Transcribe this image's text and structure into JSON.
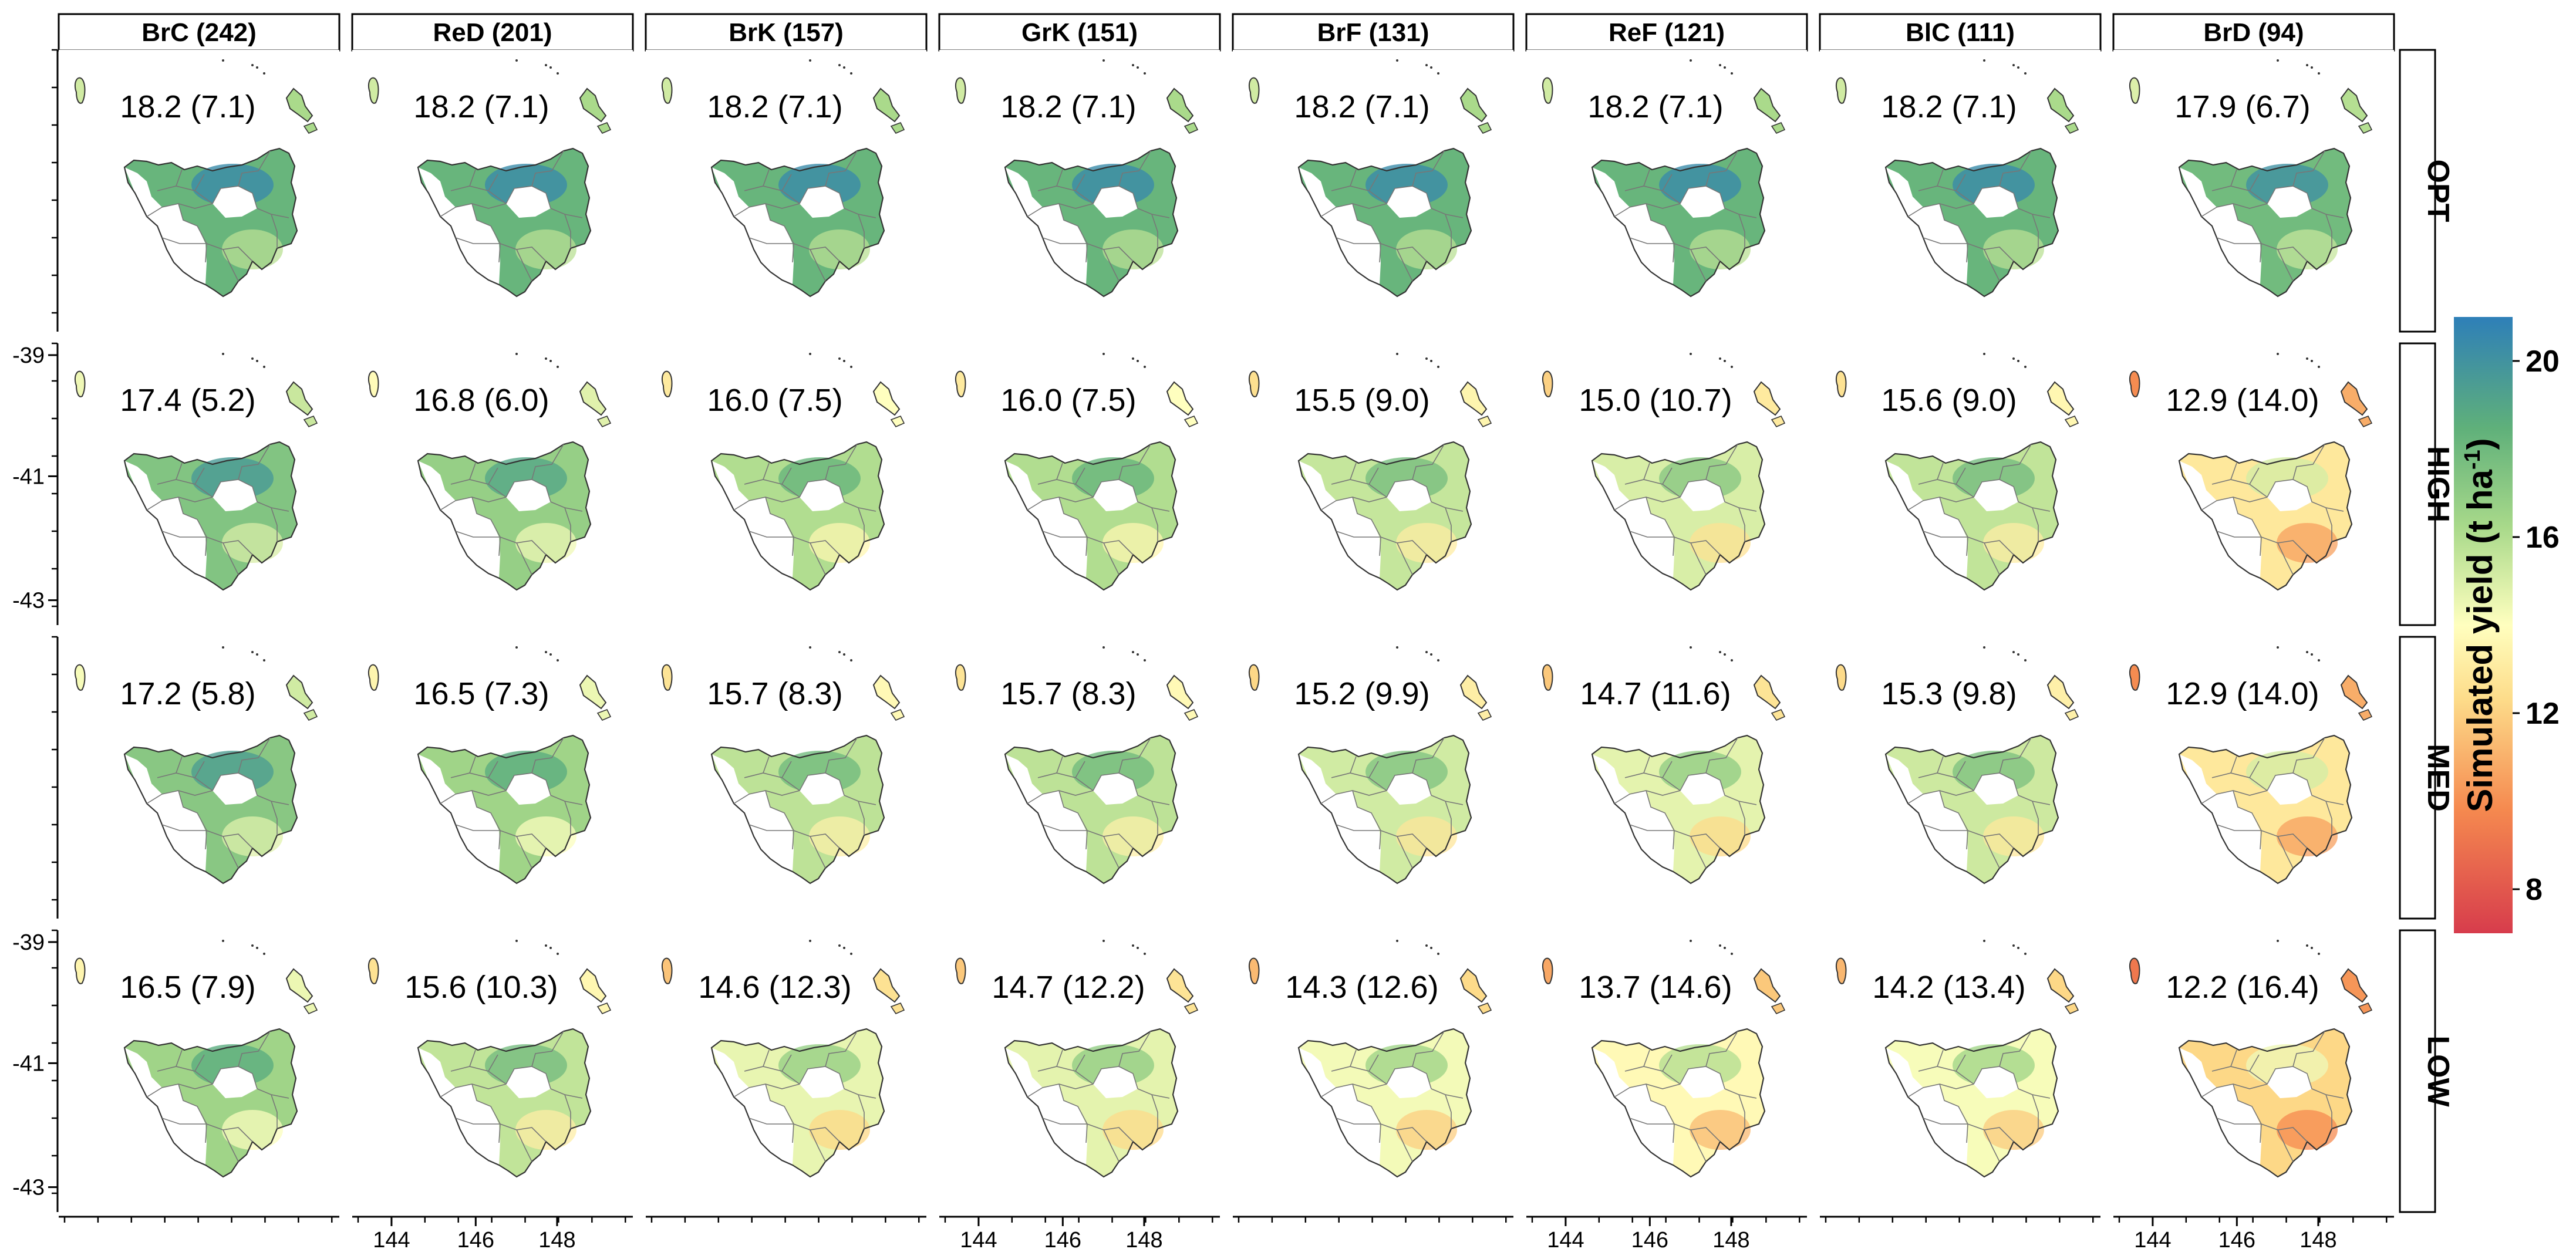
{
  "columns": [
    {
      "label": "BrC (242)"
    },
    {
      "label": "ReD (201)"
    },
    {
      "label": "BrK (157)"
    },
    {
      "label": "GrK (151)"
    },
    {
      "label": "BrF (131)"
    },
    {
      "label": "ReF (121)"
    },
    {
      "label": "BlC (111)"
    },
    {
      "label": "BrD (94)"
    }
  ],
  "rows": [
    {
      "label": "OPT"
    },
    {
      "label": "HIGH"
    },
    {
      "label": "MED"
    },
    {
      "label": "LOW"
    }
  ],
  "cells": [
    [
      "18.2 (7.1)",
      "18.2 (7.1)",
      "18.2 (7.1)",
      "18.2 (7.1)",
      "18.2 (7.1)",
      "18.2 (7.1)",
      "18.2 (7.1)",
      "17.9 (6.7)"
    ],
    [
      "17.4 (5.2)",
      "16.8 (6.0)",
      "16.0 (7.5)",
      "16.0 (7.5)",
      "15.5 (9.0)",
      "15.0 (10.7)",
      "15.6 (9.0)",
      "12.9 (14.0)"
    ],
    [
      "17.2 (5.8)",
      "16.5 (7.3)",
      "15.7 (8.3)",
      "15.7 (8.3)",
      "15.2 (9.9)",
      "14.7 (11.6)",
      "15.3 (9.8)",
      "12.9 (14.0)"
    ],
    [
      "16.5 (7.9)",
      "15.6 (10.3)",
      "14.6 (12.3)",
      "14.7 (12.2)",
      "14.3 (12.6)",
      "13.7 (14.6)",
      "14.2 (13.4)",
      "12.2 (16.4)"
    ]
  ],
  "cell_mean_yield": [
    [
      18.2,
      18.2,
      18.2,
      18.2,
      18.2,
      18.2,
      18.2,
      17.9
    ],
    [
      17.4,
      16.8,
      16.0,
      16.0,
      15.5,
      15.0,
      15.6,
      12.9
    ],
    [
      17.2,
      16.5,
      15.7,
      15.7,
      15.2,
      14.7,
      15.3,
      12.9
    ],
    [
      16.5,
      15.6,
      14.6,
      14.7,
      14.3,
      13.7,
      14.2,
      12.2
    ]
  ],
  "y_ticks": [
    "-39",
    "-41",
    "-43"
  ],
  "x_ticks": [
    "144",
    "146",
    "148"
  ],
  "colorbar": {
    "title_main": "Simulated yield (t ha",
    "title_sup": "-1",
    "title_close": ")",
    "ticks": [
      "20",
      "16",
      "12",
      "8"
    ],
    "tick_values": [
      20,
      16,
      12,
      8
    ],
    "range": [
      7,
      21
    ],
    "colors": [
      "#d73c4c",
      "#f5894f",
      "#fddc8a",
      "#ffffbf",
      "#a8d98a",
      "#5fb07a",
      "#2e7fb8"
    ]
  },
  "colors": {
    "low": "#f29a5a",
    "mid": "#fbf3a6",
    "high": "#2f7fb7",
    "green": "#8fc97e",
    "outline": "#333333",
    "region_line": "#7a7a7a"
  }
}
